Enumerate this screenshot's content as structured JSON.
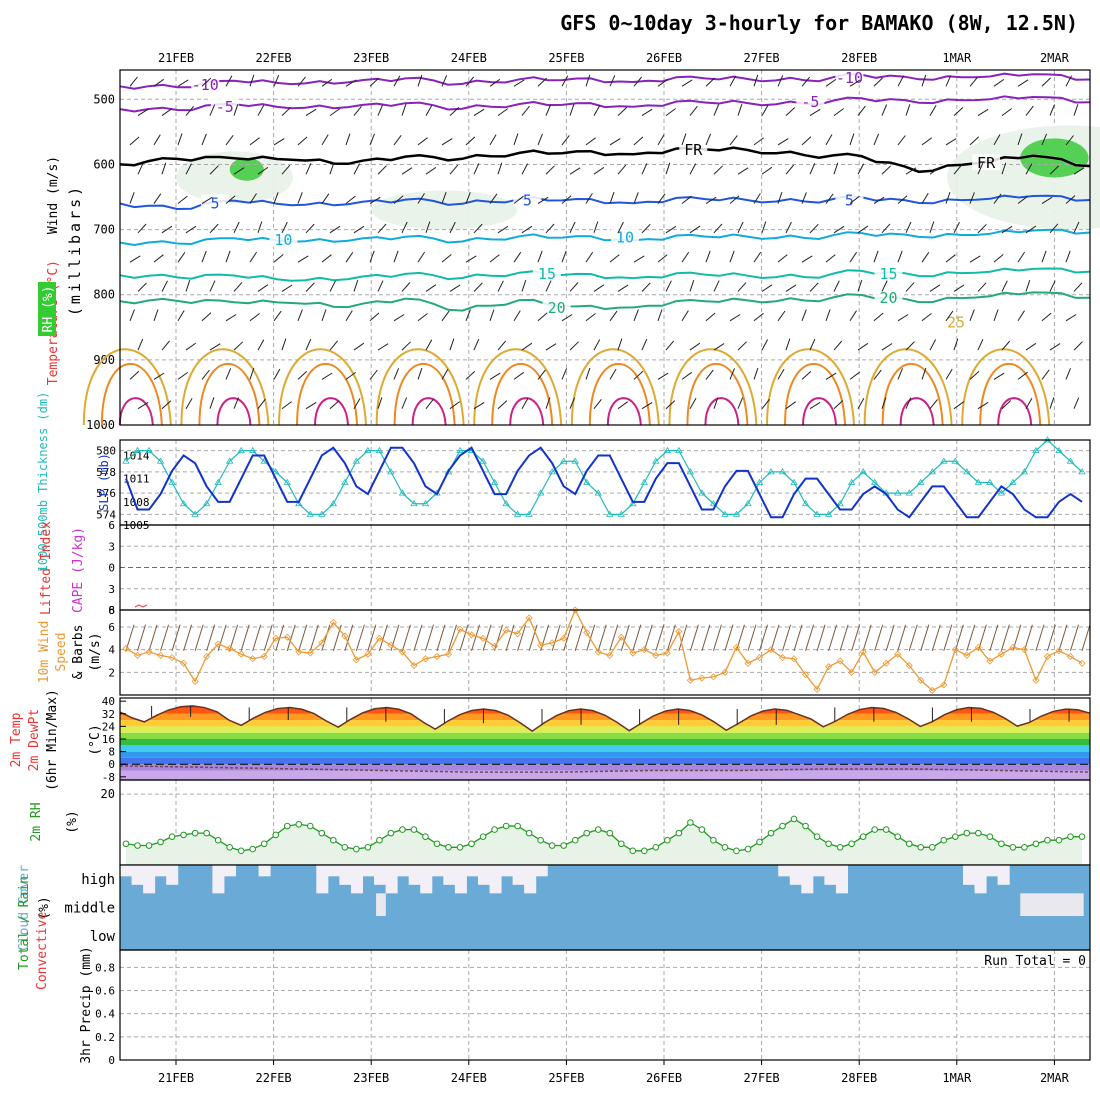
{
  "title": "GFS 0~10day 3-hourly for BAMAKO (8W, 12.5N)",
  "run_total_label": "Run Total = 0",
  "dates": [
    "21FEB",
    "22FEB",
    "23FEB",
    "24FEB",
    "25FEB",
    "26FEB",
    "27FEB",
    "28FEB",
    "1MAR",
    "2MAR"
  ],
  "colors": {
    "grid": "#aaaaaa",
    "rh_green": "#33cc33",
    "freezing": "#000000",
    "temp_neg": "#8822bb",
    "temp_5": "#2255dd",
    "temp_10": "#11aadd",
    "temp_15": "#11bbaa",
    "temp_20": "#22aa77",
    "temp_25": "#ddaa33",
    "temp_30": "#ee8822",
    "temp_35": "#cc2288",
    "thickness": "#22bbbb",
    "slp": "#1133cc",
    "wind10m": "#ee9933",
    "rh2m": "#229922",
    "cloud": "#6aaad6",
    "cloud_clear": "#f3eff6"
  },
  "chart_data": [
    {
      "id": "upper",
      "type": "contour",
      "ylabel_parts": [
        "Wind (m/s)",
        "Temperature (°C)",
        "RH (%)",
        "(millibars)"
      ],
      "yticks": [
        500,
        600,
        700,
        800,
        900,
        1000
      ],
      "ylim": [
        455,
        1000
      ],
      "isotherms": [
        {
          "label": "-10",
          "p": [
            480,
            478,
            476,
            474,
            473,
            472,
            472,
            471,
            470,
            469,
            469,
            468,
            468,
            467,
            466,
            466,
            465,
            465
          ]
        },
        {
          "label": "-5",
          "p": [
            515,
            513,
            512,
            511,
            511,
            510,
            510,
            509,
            508,
            507,
            506,
            505,
            504,
            503,
            502,
            501,
            500,
            500
          ]
        },
        {
          "label": "FR",
          "p": [
            600,
            588,
            595,
            590,
            598,
            592,
            587,
            584,
            582,
            580,
            578,
            577,
            583,
            592,
            608,
            598,
            590,
            598
          ]
        },
        {
          "label": "5",
          "p": [
            660,
            665,
            660,
            660,
            660,
            658,
            656,
            655,
            655,
            655,
            654,
            654,
            654,
            655,
            656,
            654,
            652,
            650
          ]
        },
        {
          "label": "10",
          "p": [
            720,
            718,
            718,
            716,
            716,
            715,
            714,
            712,
            712,
            712,
            712,
            710,
            710,
            710,
            708,
            708,
            705,
            700
          ]
        },
        {
          "label": "15",
          "p": [
            770,
            770,
            775,
            776,
            775,
            772,
            770,
            768,
            770,
            770,
            770,
            770,
            770,
            768,
            768,
            766,
            764,
            760
          ]
        },
        {
          "label": "20",
          "p": [
            810,
            806,
            816,
            810,
            818,
            810,
            820,
            810,
            820,
            815,
            812,
            808,
            806,
            805,
            808,
            804,
            800,
            800
          ]
        }
      ],
      "isotherm_label_dates": {
        "-10": [
          0.3,
          6.9
        ],
        "-5": [
          0.5,
          6.5
        ],
        "FR": [
          5.3,
          8.3
        ],
        "5": [
          0.4,
          3.6,
          6.9
        ],
        "10": [
          1.1,
          4.6
        ],
        "15": [
          3.8,
          7.3
        ],
        "20": [
          3.9,
          7.3
        ]
      },
      "moist_bands": [
        {
          "x0": 0.55,
          "x1": 0.9,
          "p0": 590,
          "p1": 625,
          "level": 3
        },
        {
          "x0": 8.65,
          "x1": 9.35,
          "p0": 560,
          "p1": 620,
          "level": 3
        },
        {
          "x0": 9.7,
          "x1": 10.35,
          "p0": 560,
          "p1": 640,
          "level": 2
        },
        {
          "x0": 0.0,
          "x1": 1.2,
          "p0": 580,
          "p1": 660,
          "level": 1
        },
        {
          "x0": 2.0,
          "x1": 3.5,
          "p0": 640,
          "p1": 700,
          "level": 1
        },
        {
          "x0": 7.9,
          "x1": 10.4,
          "p0": 540,
          "p1": 700,
          "level": 1
        }
      ]
    },
    {
      "id": "thickness_slp",
      "type": "line",
      "ylabel_left": "1000-500mb Thickness (dm)",
      "ylabel_right": "SLP (mb)",
      "yticks_left": [
        574,
        576,
        578,
        580
      ],
      "yticks_right": [
        1005,
        1008,
        1011,
        1014
      ],
      "series": [
        {
          "name": "thickness",
          "axis": "left",
          "values": [
            579,
            580,
            580,
            579,
            577,
            575,
            574,
            575,
            577,
            579,
            580,
            580,
            579,
            578,
            577,
            575,
            574,
            574,
            575,
            577,
            579,
            580,
            580,
            578,
            576,
            575,
            575,
            576,
            578,
            580,
            580,
            579,
            577,
            575,
            574,
            574,
            576,
            578,
            579,
            579,
            577,
            576,
            574,
            574,
            575,
            577,
            579,
            580,
            580,
            578,
            576,
            575,
            574,
            574,
            575,
            577,
            578,
            578,
            577,
            575,
            574,
            574,
            575,
            577,
            578,
            577,
            576,
            576,
            576,
            577,
            578,
            579,
            579,
            578,
            577,
            577,
            576,
            577,
            578,
            580,
            581,
            580,
            579,
            578
          ]
        },
        {
          "name": "slp",
          "axis": "right",
          "values": [
            1011,
            1007,
            1007,
            1009,
            1012,
            1014,
            1013,
            1010,
            1008,
            1008,
            1011,
            1014,
            1014,
            1011,
            1008,
            1008,
            1011,
            1014,
            1015,
            1013,
            1010,
            1009,
            1012,
            1015,
            1015,
            1013,
            1010,
            1009,
            1012,
            1014,
            1015,
            1012,
            1009,
            1009,
            1012,
            1014,
            1015,
            1013,
            1010,
            1009,
            1012,
            1014,
            1014,
            1011,
            1008,
            1008,
            1011,
            1013,
            1013,
            1010,
            1007,
            1007,
            1010,
            1012,
            1012,
            1009,
            1006,
            1006,
            1009,
            1011,
            1011,
            1009,
            1007,
            1007,
            1009,
            1010,
            1009,
            1007,
            1006,
            1008,
            1010,
            1010,
            1008,
            1006,
            1006,
            1008,
            1010,
            1009,
            1007,
            1006,
            1006,
            1008,
            1009,
            1008
          ]
        }
      ]
    },
    {
      "id": "lifted_cape",
      "type": "line",
      "ylabel_left": "Lifted Index",
      "ylabel_right": "CAPE (J/kg)",
      "yticks_left": [
        -6,
        -3,
        0,
        3,
        6
      ],
      "ylim": [
        -6,
        6
      ],
      "cape_tick": 8
    },
    {
      "id": "wind10m",
      "type": "line",
      "ylabel": "10m Wind Speed & Barbs (m/s)",
      "yticks": [
        2,
        4,
        6
      ],
      "ylim": [
        0,
        7.5
      ],
      "values": [
        4.1,
        3.5,
        3.8,
        3.5,
        3.3,
        2.8,
        1.2,
        3.4,
        4.5,
        4.1,
        3.6,
        3.2,
        3.4,
        5.0,
        5.1,
        3.8,
        3.7,
        4.6,
        6.4,
        5.2,
        3.1,
        3.6,
        5.0,
        4.4,
        3.8,
        2.6,
        3.2,
        3.4,
        3.6,
        5.8,
        5.3,
        5.0,
        4.3,
        5.7,
        5.4,
        6.8,
        4.4,
        4.6,
        5.0,
        7.5,
        5.5,
        3.8,
        3.5,
        5.1,
        3.7,
        4.0,
        3.5,
        3.7,
        5.6,
        1.3,
        1.5,
        1.6,
        2.0,
        4.2,
        2.8,
        3.3,
        4.0,
        3.3,
        3.2,
        1.8,
        0.5,
        2.5,
        3.0,
        2.0,
        3.8,
        2.0,
        2.8,
        3.6,
        2.6,
        1.3,
        0.4,
        0.9,
        4.0,
        3.5,
        4.2,
        3.0,
        3.6,
        4.2,
        4.0,
        1.3,
        3.4,
        3.9,
        3.4,
        2.8
      ]
    },
    {
      "id": "temp2m",
      "type": "area",
      "ylabel_parts": [
        "2m Temp",
        "2m DewPt",
        "(6hr Min/Max)",
        "(°C)"
      ],
      "yticks": [
        -8,
        0,
        8,
        16,
        24,
        32,
        40
      ],
      "ylim": [
        -10,
        42
      ],
      "temp_max_day": [
        37,
        36,
        36,
        35,
        35,
        35,
        35,
        36,
        36,
        35
      ],
      "temp_min_day": [
        26,
        24,
        23,
        22,
        21,
        21,
        21,
        23,
        23,
        23
      ],
      "dewpoint": [
        -1,
        -2,
        -3,
        -4,
        -5,
        -5,
        -4,
        -4,
        -3,
        -3,
        -4,
        -5
      ]
    },
    {
      "id": "rh2m",
      "type": "line",
      "ylabel": "2m RH (%)",
      "yticks": [
        20
      ],
      "ylim": [
        0,
        24
      ],
      "values": [
        6,
        5.5,
        5.5,
        6.5,
        8,
        8.5,
        9,
        9,
        7,
        5,
        4,
        4.5,
        6,
        8.5,
        11,
        11.5,
        11,
        9,
        7,
        5,
        4.5,
        5,
        7,
        9,
        10,
        10,
        8,
        6,
        5,
        5,
        6,
        8,
        10,
        11,
        11,
        9,
        7,
        5.5,
        5.5,
        7,
        9,
        10,
        9,
        6,
        4,
        4,
        5,
        7,
        9,
        12,
        10,
        7,
        5,
        4,
        4.5,
        6.5,
        9,
        11,
        13,
        11,
        8,
        6,
        5,
        6,
        8,
        10,
        10,
        8,
        6,
        5,
        5,
        7,
        8,
        9,
        9,
        8,
        6,
        5,
        5,
        6,
        7,
        7,
        8,
        8
      ]
    },
    {
      "id": "cloud",
      "type": "heatmap",
      "ylabel": "Cloud Cover (%)",
      "rows": [
        "high",
        "middle",
        "low"
      ],
      "high_clear": [
        1,
        1,
        1,
        1,
        1,
        0,
        0,
        0,
        1,
        1,
        0,
        0,
        1,
        0,
        0,
        0,
        0,
        1,
        1,
        1,
        1,
        1,
        1,
        1,
        1,
        1,
        1,
        1,
        1,
        1,
        1,
        1,
        1,
        1,
        1,
        1,
        1,
        0,
        0,
        0,
        0,
        0,
        0,
        0,
        0,
        0,
        0,
        0,
        0,
        0,
        0,
        0,
        0,
        0,
        0,
        0,
        0,
        1,
        1,
        1,
        1,
        1,
        1,
        0,
        0,
        0,
        0,
        0,
        0,
        0,
        0,
        0,
        0,
        1,
        1,
        1,
        1,
        0,
        0,
        0,
        0,
        0,
        0,
        0
      ],
      "middle_clear_spans": [
        [
          2.05,
          2.15
        ],
        [
          8.65,
          9.3
        ]
      ]
    },
    {
      "id": "precip",
      "type": "bar",
      "ylabel_parts": [
        "Total / Rain",
        "Convective",
        "3hr Precip (mm)"
      ],
      "yticks": [
        0,
        0.2,
        0.4,
        0.6,
        0.8
      ],
      "ylim": [
        0,
        0.95
      ],
      "values": []
    }
  ]
}
